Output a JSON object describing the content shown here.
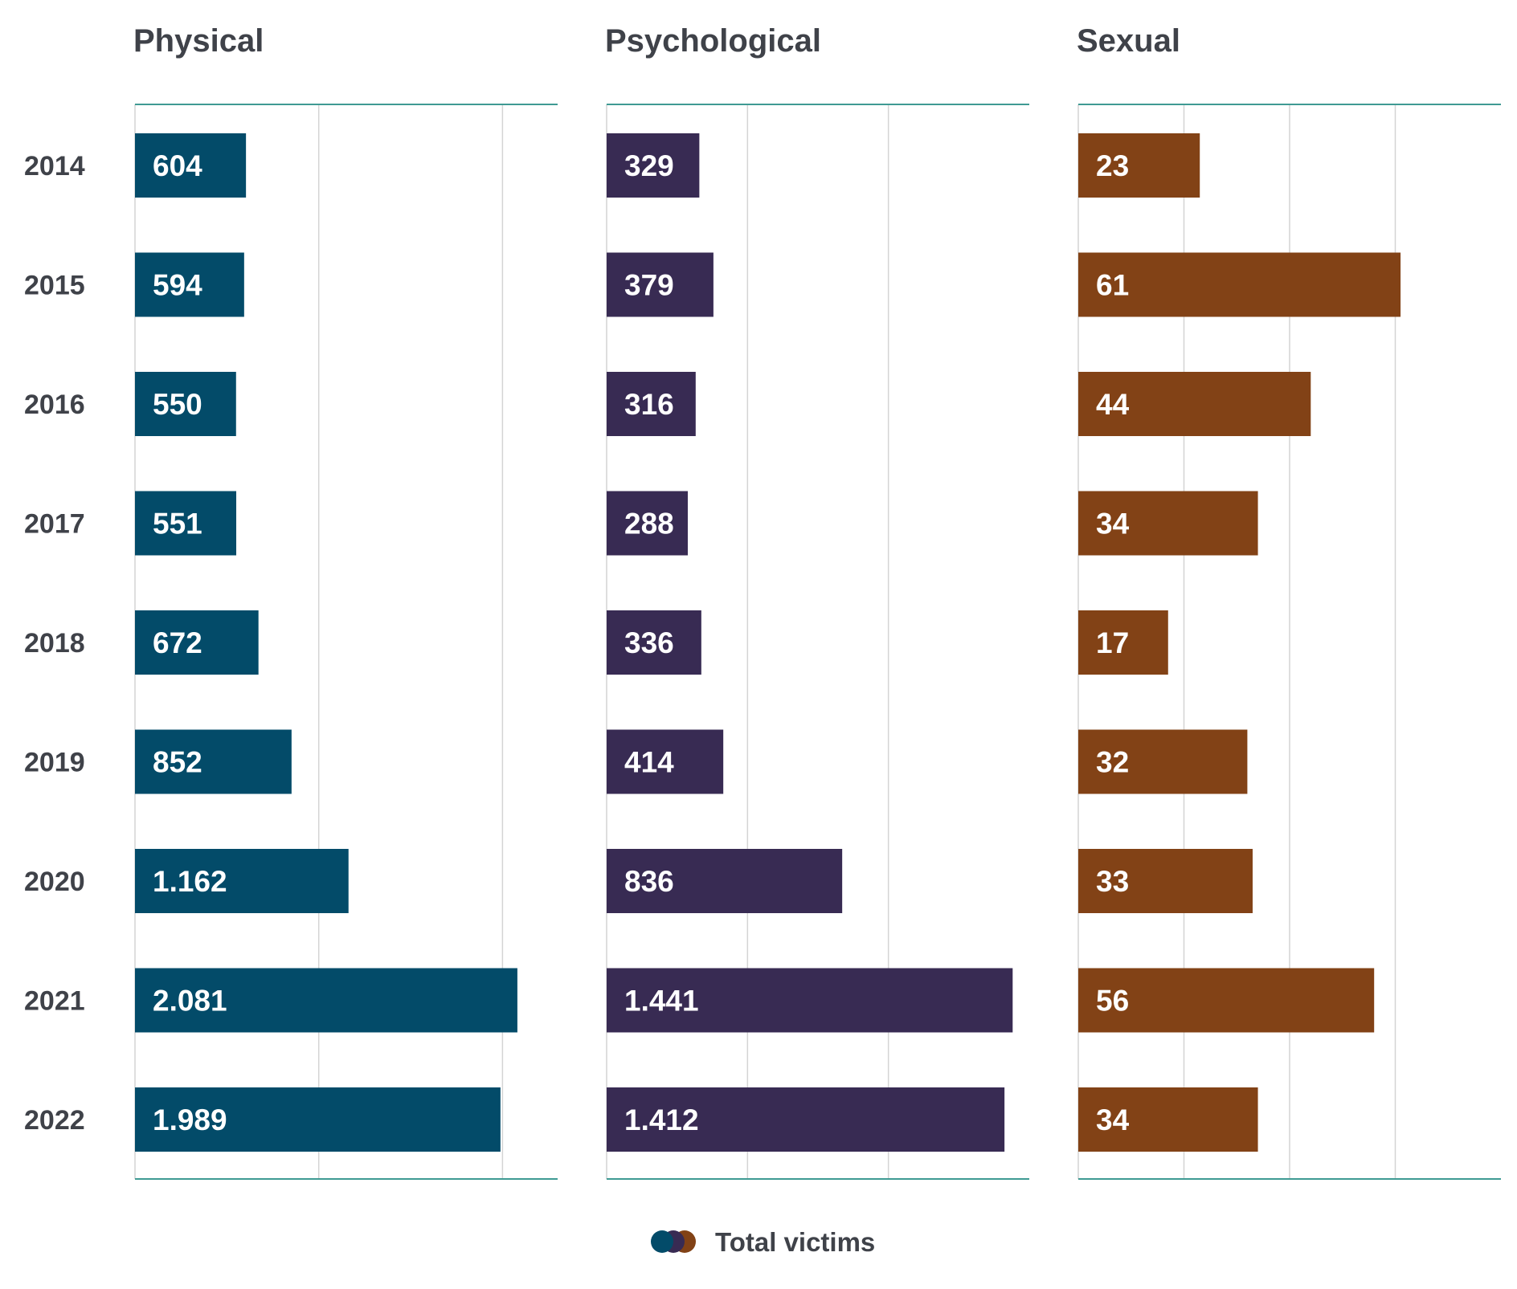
{
  "chart_data": {
    "type": "bar",
    "orientation": "horizontal",
    "categories": [
      "2014",
      "2015",
      "2016",
      "2017",
      "2018",
      "2019",
      "2020",
      "2021",
      "2022"
    ],
    "series": [
      {
        "name": "Physical",
        "color": "#034b69",
        "values": [
          604,
          594,
          550,
          551,
          672,
          852,
          1162,
          2081,
          1989
        ],
        "labels": [
          "604",
          "594",
          "550",
          "551",
          "672",
          "852",
          "1.162",
          "2.081",
          "1.989"
        ],
        "xlim": [
          0,
          2300
        ],
        "gridlines": [
          1000,
          2000
        ]
      },
      {
        "name": "Psychological",
        "color": "#382b53",
        "values": [
          329,
          379,
          316,
          288,
          336,
          414,
          836,
          1441,
          1412
        ],
        "labels": [
          "329",
          "379",
          "316",
          "288",
          "336",
          "414",
          "836",
          "1.441",
          "1.412"
        ],
        "xlim": [
          0,
          1500
        ],
        "gridlines": [
          500,
          1000
        ]
      },
      {
        "name": "Sexual",
        "color": "#824216",
        "values": [
          23,
          61,
          44,
          34,
          17,
          32,
          33,
          56,
          34
        ],
        "labels": [
          "23",
          "61",
          "44",
          "34",
          "17",
          "32",
          "33",
          "56",
          "34"
        ],
        "xlim": [
          0,
          80
        ],
        "gridlines": [
          20,
          40,
          60
        ]
      }
    ],
    "legend": {
      "label": "Total victims",
      "position": "bottom-center"
    },
    "axis_line_color": "#3f9a93",
    "grid_color": "#d4d4d4"
  }
}
